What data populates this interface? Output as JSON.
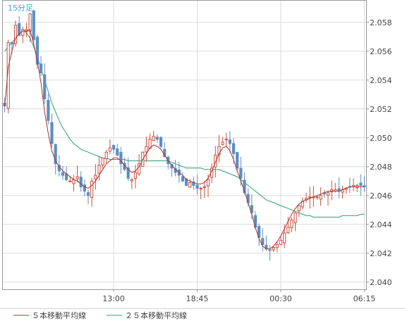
{
  "chart_data": {
    "type": "candlestick",
    "title": "15分足",
    "xlabel": "",
    "ylabel": "",
    "ylim": [
      2.0395,
      2.0595
    ],
    "y_ticks": [
      2.04,
      2.042,
      2.044,
      2.046,
      2.048,
      2.05,
      2.052,
      2.054,
      2.056,
      2.058
    ],
    "x_tick_labels": [
      "13:00",
      "18:45",
      "00:30",
      "06:15"
    ],
    "x_tick_index": [
      30,
      53,
      76,
      99
    ],
    "candle_count": 100,
    "grid": true,
    "legend_position": "bottom-left",
    "colors": {
      "up": "#c8503c",
      "down": "#5b8fc2",
      "ma5": "#b03030",
      "ma25": "#2e9e78",
      "title": "#3aa7d8",
      "grid": "#dcdcdc",
      "axis_text": "#444444",
      "background": "#ffffff"
    },
    "close": [
      2.0522,
      2.0566,
      2.0565,
      2.0578,
      2.0571,
      2.0575,
      2.0575,
      2.0586,
      2.0568,
      2.0551,
      2.0545,
      2.0527,
      2.0512,
      2.0496,
      2.0482,
      2.0477,
      2.0474,
      2.0471,
      2.047,
      2.0471,
      2.0473,
      2.0466,
      2.0463,
      2.046,
      2.047,
      2.0474,
      2.0481,
      2.0486,
      2.049,
      2.0493,
      2.0492,
      2.0488,
      2.0482,
      2.0478,
      2.0472,
      2.0471,
      2.0476,
      2.0482,
      2.049,
      2.0494,
      2.0499,
      2.0501,
      2.0499,
      2.0494,
      2.0487,
      2.0482,
      2.0479,
      2.0476,
      2.0474,
      2.047,
      2.0467,
      2.0469,
      2.0467,
      2.0465,
      2.0465,
      2.0466,
      2.0471,
      2.0479,
      2.0488,
      2.0494,
      2.0497,
      2.0499,
      2.0496,
      2.0489,
      2.0479,
      2.0472,
      2.0462,
      2.0455,
      2.0448,
      2.0438,
      2.0431,
      2.0426,
      2.0423,
      2.0422,
      2.0424,
      2.0426,
      2.0429,
      2.0434,
      2.0438,
      2.0443,
      2.0448,
      2.0453,
      2.0456,
      2.0458,
      2.0459,
      2.0459,
      2.0459,
      2.046,
      2.0461,
      2.0462,
      2.0464,
      2.0464,
      2.0463,
      2.0464,
      2.0465,
      2.0466,
      2.0467,
      2.0467,
      2.0467,
      2.0466
    ],
    "ma5": [
      2.0522,
      2.0549,
      2.056,
      2.0569,
      2.0572,
      2.0574,
      2.0574,
      2.0575,
      2.0565,
      2.0553,
      2.0538,
      2.0518,
      2.0503,
      2.0491,
      2.0484,
      2.048,
      2.0477,
      2.0475,
      2.0473,
      2.0471,
      2.047,
      2.0468,
      2.0466,
      2.0465,
      2.0467,
      2.047,
      2.0474,
      2.0478,
      2.0482,
      2.0484,
      2.0486,
      2.0486,
      2.0484,
      2.0481,
      2.0478,
      2.0476,
      2.0477,
      2.048,
      2.0485,
      2.0489,
      2.0493,
      2.0495,
      2.0494,
      2.0492,
      2.0488,
      2.0484,
      2.0481,
      2.0478,
      2.0476,
      2.0474,
      2.0471,
      2.047,
      2.0469,
      2.0468,
      2.0468,
      2.0469,
      2.0472,
      2.0477,
      2.0483,
      2.0489,
      2.0493,
      2.0494,
      2.0491,
      2.0485,
      2.0477,
      2.047,
      2.0463,
      2.0455,
      2.0447,
      2.0438,
      2.043,
      2.0425,
      2.0423,
      2.0423,
      2.0425,
      2.0428,
      2.0432,
      2.0437,
      2.0442,
      2.0447,
      2.0451,
      2.0454,
      2.0456,
      2.0457,
      2.0458,
      2.0459,
      2.046,
      2.0461,
      2.0462,
      2.0463,
      2.0463,
      2.0463,
      2.0463,
      2.0464,
      2.0465,
      2.0466,
      2.0466,
      2.0466,
      2.0466,
      2.0466
    ],
    "ma25": [
      2.056,
      2.0563,
      2.0566,
      2.0569,
      2.0572,
      2.0574,
      2.0573,
      2.0569,
      2.0563,
      2.0556,
      2.0548,
      2.054,
      2.0532,
      2.0524,
      2.0518,
      2.0512,
      2.0507,
      2.0503,
      2.0499,
      2.0496,
      2.0494,
      2.0492,
      2.0491,
      2.049,
      2.0489,
      2.0488,
      2.0487,
      2.0486,
      2.0486,
      2.0485,
      2.0485,
      2.0485,
      2.0485,
      2.0485,
      2.0484,
      2.0484,
      2.0484,
      2.0484,
      2.0484,
      2.0484,
      2.0484,
      2.0484,
      2.0484,
      2.0484,
      2.0484,
      2.0484,
      2.0483,
      2.0482,
      2.0481,
      2.048,
      2.0479,
      2.0479,
      2.0479,
      2.0479,
      2.0479,
      2.0478,
      2.0478,
      2.0478,
      2.0478,
      2.0478,
      2.0477,
      2.0476,
      2.0475,
      2.0474,
      2.0473,
      2.0471,
      2.0469,
      2.0467,
      2.0465,
      2.0463,
      2.0461,
      2.0459,
      2.0457,
      2.0456,
      2.0455,
      2.0454,
      2.0453,
      2.0452,
      2.0451,
      2.045,
      2.0449,
      2.0448,
      2.0447,
      2.0446,
      2.0446,
      2.0445,
      2.0445,
      2.0445,
      2.0445,
      2.0445,
      2.0445,
      2.0445,
      2.0445,
      2.0446,
      2.0446,
      2.0446,
      2.0446,
      2.0446,
      2.0447,
      2.0447
    ],
    "legend": [
      {
        "label": "５本移動平均線",
        "color": "#b03030"
      },
      {
        "label": "２５本移動平均線",
        "color": "#2e9e78"
      }
    ]
  }
}
